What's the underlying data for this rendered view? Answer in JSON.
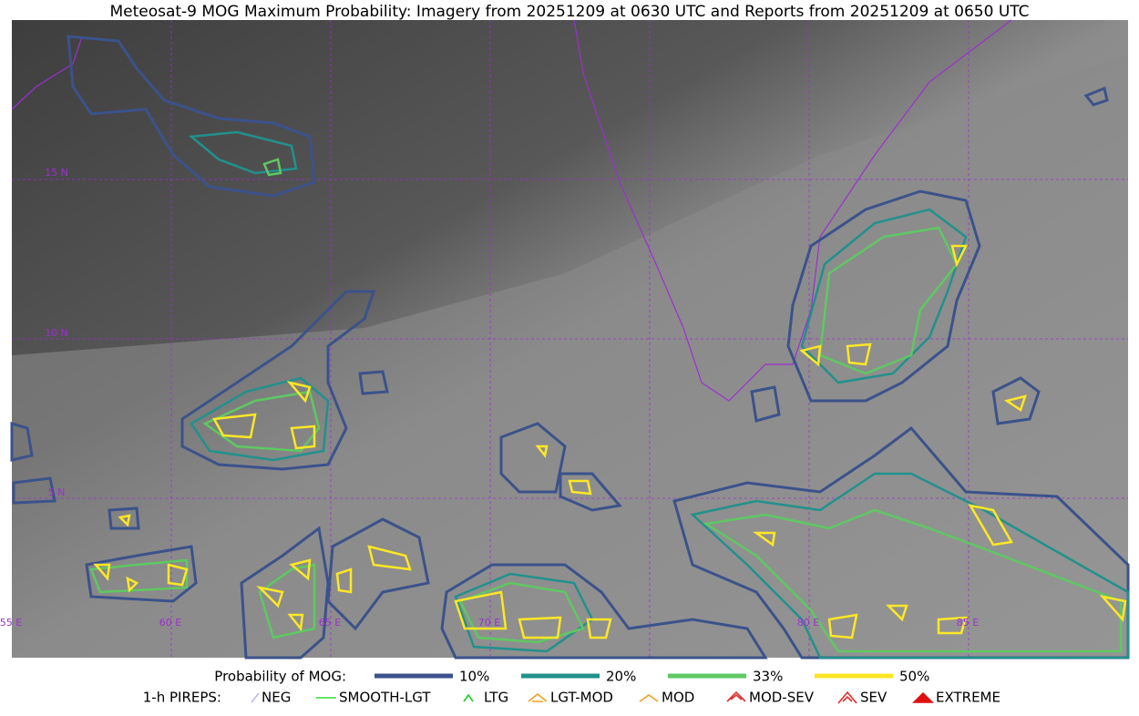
{
  "title": "Meteosat-9 MOG Maximum Probability: Imagery from 20251209 at 0630 UTC and Reports from 20251209 at 0650 UTC",
  "map": {
    "lat_labels": [
      "15 N",
      "10 N",
      "5 N"
    ],
    "lon_labels": [
      "55 E",
      "60 E",
      "65 E",
      "70 E",
      "80 E",
      "85 E"
    ]
  },
  "legend": {
    "probability": {
      "label": "Probability of MOG:",
      "items": [
        {
          "label": "10%",
          "color": "#3b528b"
        },
        {
          "label": "20%",
          "color": "#21918c"
        },
        {
          "label": "33%",
          "color": "#5ec962"
        },
        {
          "label": "50%",
          "color": "#fde725"
        }
      ]
    },
    "pireps": {
      "label": "1-h PIREPS:",
      "items": [
        {
          "label": "NEG",
          "color": "#b8b8f0"
        },
        {
          "label": "SMOOTH-LGT",
          "color": "#33dd33"
        },
        {
          "label": "LTG",
          "color": "#22cc22"
        },
        {
          "label": "LGT-MOD",
          "color": "#f0a020"
        },
        {
          "label": "MOD",
          "color": "#f0a020"
        },
        {
          "label": "MOD-SEV",
          "color": "#e03030"
        },
        {
          "label": "SEV",
          "color": "#e03030"
        },
        {
          "label": "EXTREME",
          "color": "#e01010"
        }
      ]
    }
  }
}
